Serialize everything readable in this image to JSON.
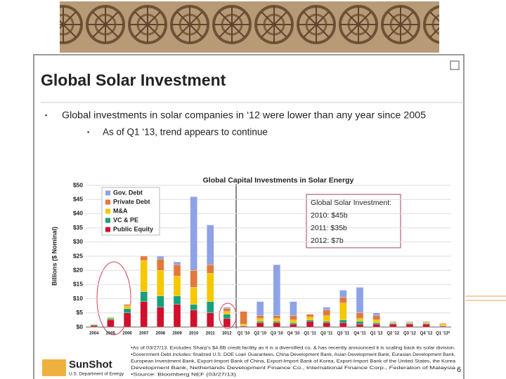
{
  "slide": {
    "title": "Global Solar Investment",
    "bullets": [
      "Global investments in solar companies in ‘12 were lower than any year since 2005",
      "As of Q1 ‘13, trend appears to continue"
    ],
    "footnotes": [
      "•As of 03/27/13. Excludes Sharp's $4.6B credit facility as it is a diversified co. & has recently announced it is scaling back its solar division.",
      "•Government Debt includes: finalized U.S. DOE Loan Guarantees, China Development Bank, Asian Development Bank, Eurasian Development Bank,",
      "European Investment Bank, Export-Import Bank of China, Export-Import Bank of Korea, Export-Import Bank of the United States, the Korea",
      "Development Bank, Netherlands Development Finance Co., International Finance Corp., Federation of Malaysia",
      "•Source: Bloomberg NEF (03/27/13)"
    ],
    "logo": "SunShot",
    "logo_sub": "U.S. Department of Energy",
    "page_number": "6"
  },
  "chart_data": {
    "type": "stacked_bar",
    "title": "Global Capital Investments in Solar Energy",
    "y_label": "Billions ($ Nominal)",
    "categories": [
      "2004",
      "2005",
      "2006",
      "2007",
      "2008",
      "2009",
      "2010",
      "2011",
      "2012",
      "Q1 '10",
      "Q2 '10",
      "Q3 '10",
      "Q4 '10",
      "Q1 '11",
      "Q2 '11",
      "Q3 '11",
      "Q4 '11",
      "Q1 '12",
      "Q2 '12",
      "Q3 '12",
      "Q4 '12",
      "Q1 '13*"
    ],
    "series": [
      {
        "name": "Public Equity",
        "color": "#d0102c",
        "values": [
          0.5,
          2.5,
          5,
          9,
          7,
          8,
          6,
          5,
          3,
          0.3,
          1.5,
          1.5,
          1,
          2,
          1.5,
          1.5,
          1,
          1,
          1,
          1,
          1,
          0.3
        ]
      },
      {
        "name": "VC & PE",
        "color": "#18a07c",
        "values": [
          0.3,
          0.5,
          1.5,
          3.5,
          4,
          3,
          2,
          4,
          1.5,
          0.2,
          0.5,
          0.5,
          0.5,
          0.5,
          0.5,
          1,
          1,
          0.5,
          0.3,
          0.3,
          0.3,
          0.2
        ]
      },
      {
        "name": "M&A",
        "color": "#f5c800",
        "values": [
          0.2,
          0.3,
          1,
          11,
          9,
          7,
          6,
          10,
          1,
          0.5,
          1,
          1,
          1,
          1,
          2,
          6,
          1,
          1,
          0.3,
          0.3,
          0.3,
          0.5
        ]
      },
      {
        "name": "Private Debt",
        "color": "#e2793a",
        "values": [
          0,
          0.2,
          0.5,
          1.5,
          4,
          4,
          6,
          3,
          1,
          4.5,
          1,
          1,
          1.5,
          1,
          2,
          2,
          2,
          1.5,
          0.2,
          0.2,
          0.3,
          0.3
        ]
      },
      {
        "name": "Gov. Debt",
        "color": "#8fa2e6",
        "values": [
          0,
          0,
          0,
          0,
          1,
          1,
          26,
          14,
          0.5,
          0,
          5,
          18,
          5,
          0,
          1,
          2.5,
          9,
          1,
          0.2,
          0.2,
          0.1,
          0
        ]
      }
    ],
    "ylim": [
      0,
      50
    ],
    "yticks": [
      {
        "value": 0,
        "label": "$0"
      },
      {
        "value": 5,
        "label": "$5"
      },
      {
        "value": 10,
        "label": "$10"
      },
      {
        "value": 15,
        "label": "$15"
      },
      {
        "value": 20,
        "label": "$20"
      },
      {
        "value": 25,
        "label": "$25"
      },
      {
        "value": 30,
        "label": "$30"
      },
      {
        "value": 35,
        "label": "$35"
      },
      {
        "value": 40,
        "label": "$40"
      },
      {
        "value": 45,
        "label": "$45"
      },
      {
        "value": 50,
        "label": "$50"
      }
    ],
    "grid": true,
    "legend": "upper left",
    "annotation": [
      "Global Solar Investment:",
      "2010: $45b",
      "2011: $35b",
      "2012: $7b"
    ]
  }
}
